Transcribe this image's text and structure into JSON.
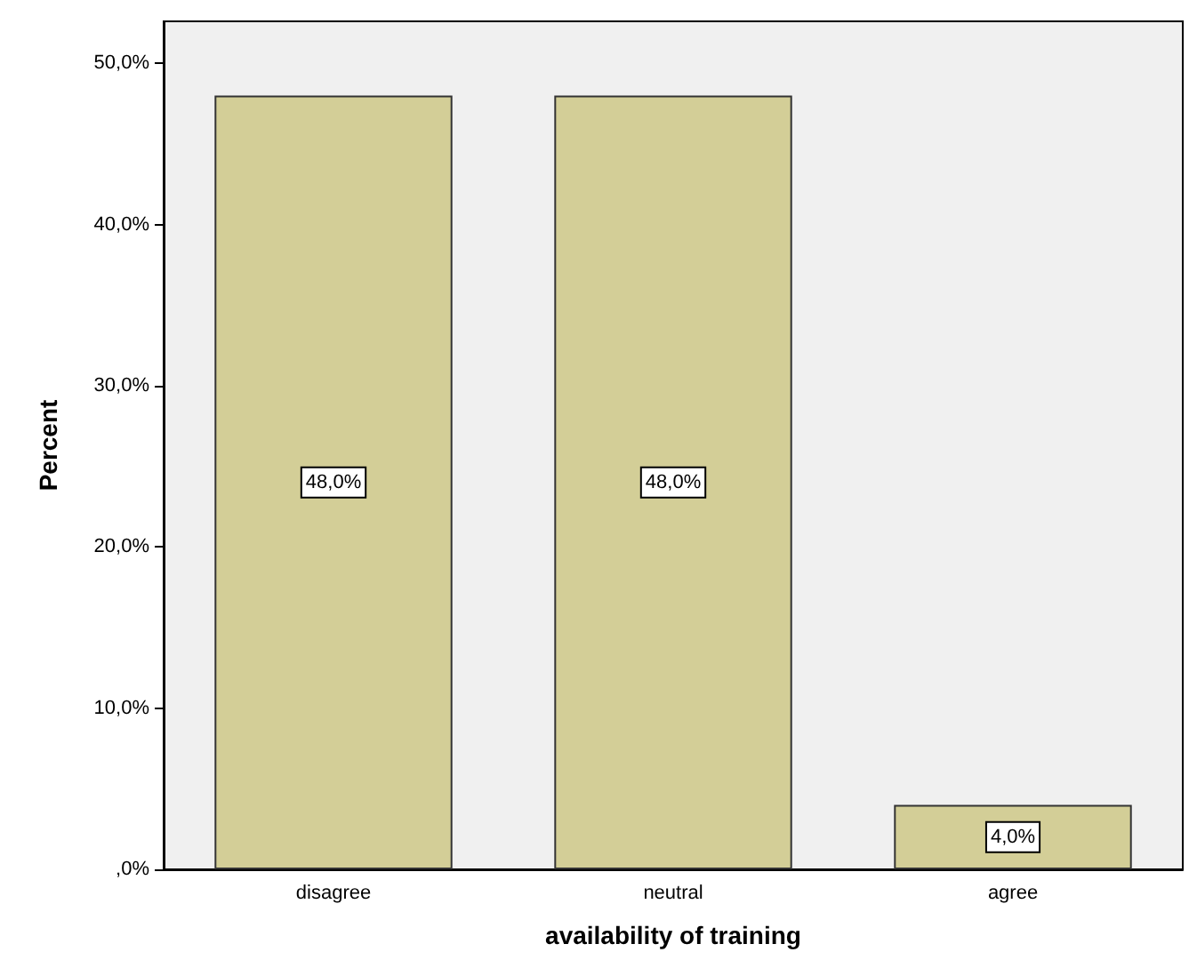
{
  "chart_data": {
    "type": "bar",
    "xlabel": "availability of training",
    "ylabel": "Percent",
    "categories": [
      "disagree",
      "neutral",
      "agree"
    ],
    "values": [
      48,
      48,
      4
    ],
    "color": "#d3ce97",
    "value_labels": [
      "48,0%",
      "48,0%",
      "4,0%"
    ],
    "ylim": [
      0,
      52.6
    ],
    "yticks": [
      {
        "value": 0,
        "label": ",0%"
      },
      {
        "value": 10,
        "label": "10,0%"
      },
      {
        "value": 20,
        "label": "20,0%"
      },
      {
        "value": 30,
        "label": "30,0%"
      },
      {
        "value": 40,
        "label": "40,0%"
      },
      {
        "value": 50,
        "label": "50,0%"
      }
    ],
    "grid": false
  }
}
